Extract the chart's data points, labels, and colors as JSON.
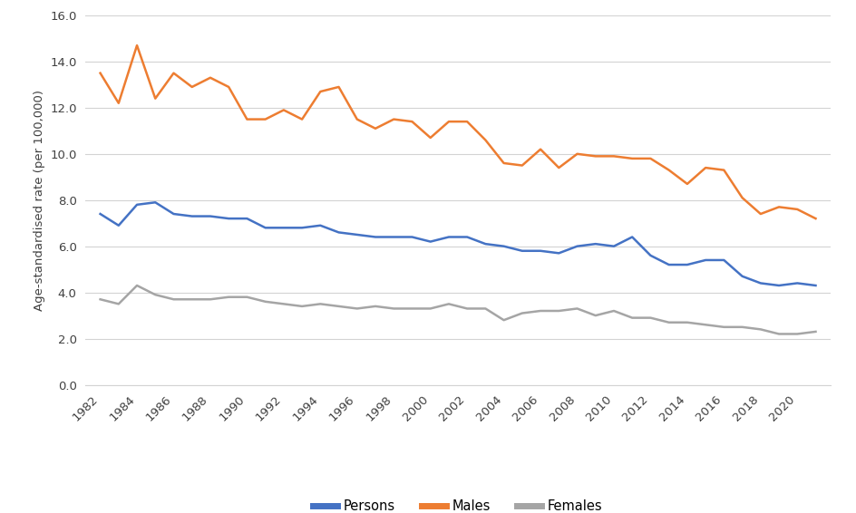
{
  "years": [
    1982,
    1983,
    1984,
    1985,
    1986,
    1987,
    1988,
    1989,
    1990,
    1991,
    1992,
    1993,
    1994,
    1995,
    1996,
    1997,
    1998,
    1999,
    2000,
    2001,
    2002,
    2003,
    2004,
    2005,
    2006,
    2007,
    2008,
    2009,
    2010,
    2011,
    2012,
    2013,
    2014,
    2015,
    2016,
    2017,
    2018,
    2019,
    2020,
    2021
  ],
  "persons": [
    7.4,
    6.9,
    7.8,
    7.9,
    7.4,
    7.3,
    7.3,
    7.2,
    7.2,
    6.8,
    6.8,
    6.8,
    6.9,
    6.6,
    6.5,
    6.4,
    6.4,
    6.4,
    6.2,
    6.4,
    6.4,
    6.1,
    6.0,
    5.8,
    5.8,
    5.7,
    6.0,
    6.1,
    6.0,
    6.4,
    5.6,
    5.2,
    5.2,
    5.4,
    5.4,
    4.7,
    4.4,
    4.3,
    4.4,
    4.3
  ],
  "males": [
    13.5,
    12.2,
    14.7,
    12.4,
    13.5,
    12.9,
    13.3,
    12.9,
    11.5,
    11.5,
    11.9,
    11.5,
    12.7,
    12.9,
    11.5,
    11.1,
    11.5,
    11.4,
    10.7,
    11.4,
    11.4,
    10.6,
    9.6,
    9.5,
    10.2,
    9.4,
    10.0,
    9.9,
    9.9,
    9.8,
    9.8,
    9.3,
    8.7,
    9.4,
    9.3,
    8.1,
    7.4,
    7.7,
    7.6,
    7.2
  ],
  "females": [
    3.7,
    3.5,
    4.3,
    3.9,
    3.7,
    3.7,
    3.7,
    3.8,
    3.8,
    3.6,
    3.5,
    3.4,
    3.5,
    3.4,
    3.3,
    3.4,
    3.3,
    3.3,
    3.3,
    3.5,
    3.3,
    3.3,
    2.8,
    3.1,
    3.2,
    3.2,
    3.3,
    3.0,
    3.2,
    2.9,
    2.9,
    2.7,
    2.7,
    2.6,
    2.5,
    2.5,
    2.4,
    2.2,
    2.2,
    2.3
  ],
  "persons_color": "#4472C4",
  "males_color": "#ED7D31",
  "females_color": "#A5A5A5",
  "ylabel": "Age-standardised rate (per 100,000)",
  "ylim": [
    0.0,
    16.0
  ],
  "yticks": [
    0.0,
    2.0,
    4.0,
    6.0,
    8.0,
    10.0,
    12.0,
    14.0,
    16.0
  ],
  "xtick_years": [
    1982,
    1984,
    1986,
    1988,
    1990,
    1992,
    1994,
    1996,
    1998,
    2000,
    2002,
    2004,
    2006,
    2008,
    2010,
    2012,
    2014,
    2016,
    2018,
    2020
  ],
  "legend_labels": [
    "Persons",
    "Males",
    "Females"
  ],
  "line_width": 1.8,
  "bg_color": "#FFFFFF",
  "grid_color": "#D3D3D3",
  "tick_label_color": "#404040",
  "ylabel_color": "#404040"
}
